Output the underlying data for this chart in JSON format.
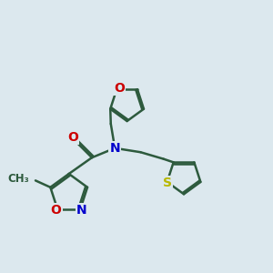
{
  "bg_color": "#dce8ee",
  "bond_color": "#2d5a3d",
  "bond_width": 1.8,
  "atom_colors": {
    "N": "#0000cc",
    "O": "#cc0000",
    "S": "#b8b800",
    "C": "#2d5a3d"
  },
  "font_size": 10,
  "fig_size": [
    3.0,
    3.0
  ],
  "dpi": 100
}
